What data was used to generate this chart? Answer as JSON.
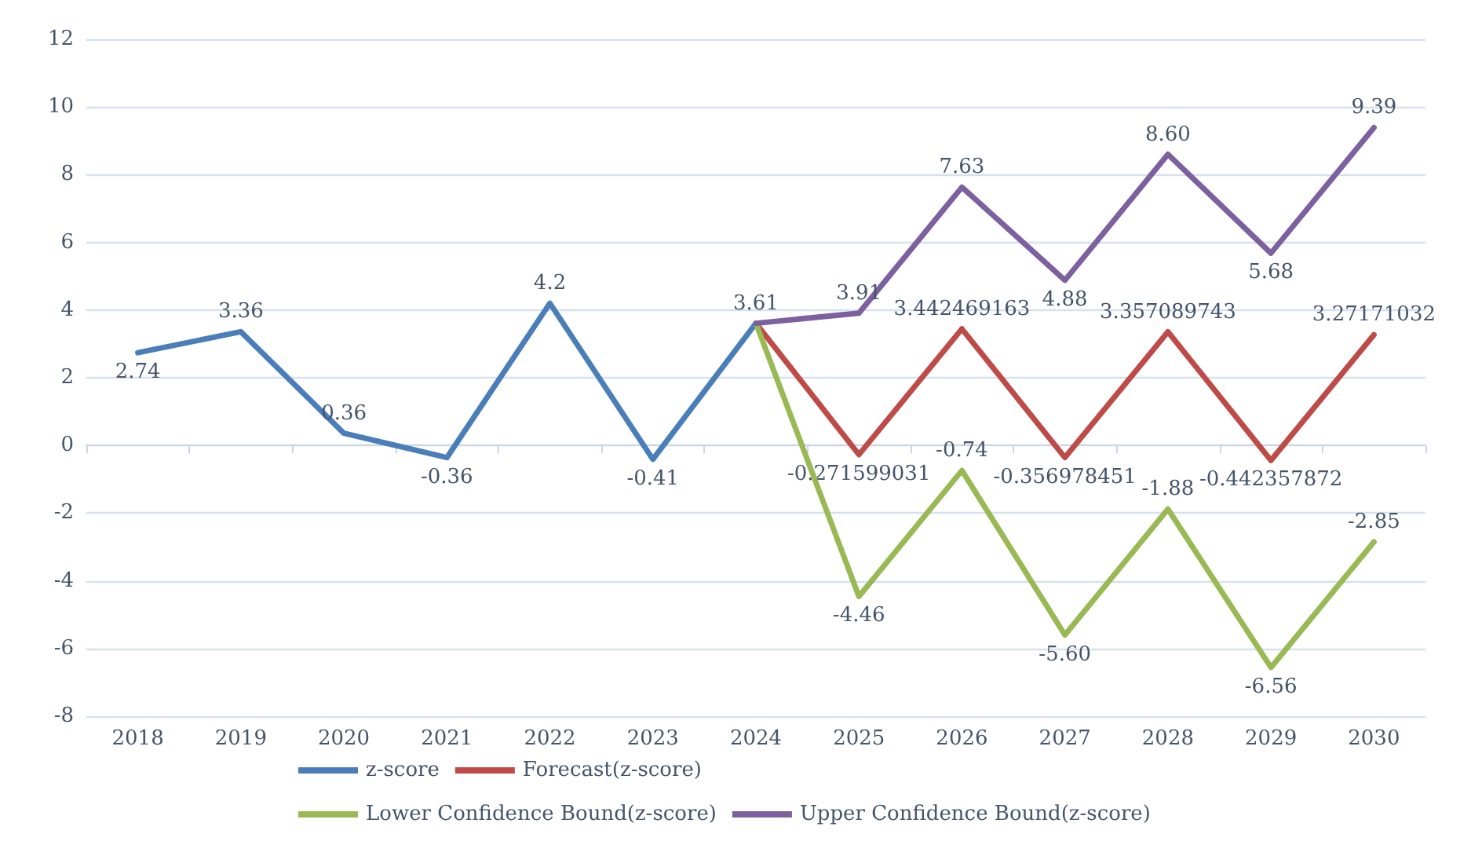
{
  "chart_data": {
    "type": "line",
    "categories": [
      "2018",
      "2019",
      "2020",
      "2021",
      "2022",
      "2023",
      "2024",
      "2025",
      "2026",
      "2027",
      "2028",
      "2029",
      "2030"
    ],
    "ylim": [
      -8,
      12
    ],
    "yticks": [
      -8,
      -6,
      -4,
      -2,
      0,
      2,
      4,
      6,
      8,
      10,
      12
    ],
    "grid": "y",
    "legend": "bottom",
    "marker": "none",
    "line_style": "solid",
    "series": [
      {
        "name": "z-score",
        "color": "#4a7ebb",
        "values": [
          2.74,
          3.36,
          0.36,
          -0.36,
          4.2,
          -0.41,
          3.61,
          null,
          null,
          null,
          null,
          null,
          null
        ],
        "value_labels": [
          "2.74",
          "3.36",
          "0.36",
          "-0.36",
          "4.2",
          "-0.41",
          "3.61",
          null,
          null,
          null,
          null,
          null,
          null
        ]
      },
      {
        "name": "Forecast(z-score)",
        "color": "#be4b48",
        "values": [
          null,
          null,
          null,
          null,
          null,
          null,
          3.61,
          -0.271599031,
          3.442469163,
          -0.356978451,
          3.357089743,
          -0.442357872,
          3.27171032
        ],
        "value_labels": [
          null,
          null,
          null,
          null,
          null,
          null,
          null,
          "-0.271599031",
          "3.442469163",
          "-0.356978451",
          "3.357089743",
          "-0.442357872",
          "3.27171032"
        ]
      },
      {
        "name": "Lower Confidence Bound(z-score)",
        "color": "#98b954",
        "values": [
          null,
          null,
          null,
          null,
          null,
          null,
          3.61,
          -4.46,
          -0.74,
          -5.6,
          -1.88,
          -6.56,
          -2.85
        ],
        "value_labels": [
          null,
          null,
          null,
          null,
          null,
          null,
          null,
          "-4.46",
          "-0.74",
          "-5.60",
          "-1.88",
          "-6.56",
          "-2.85"
        ]
      },
      {
        "name": "Upper Confidence Bound(z-score)",
        "color": "#7d60a0",
        "values": [
          null,
          null,
          null,
          null,
          null,
          null,
          3.61,
          3.91,
          7.63,
          4.88,
          8.6,
          5.68,
          9.39
        ],
        "value_labels": [
          null,
          null,
          null,
          null,
          null,
          null,
          null,
          "3.91",
          "7.63",
          "4.88",
          "8.60",
          "5.68",
          "9.39"
        ]
      }
    ]
  }
}
